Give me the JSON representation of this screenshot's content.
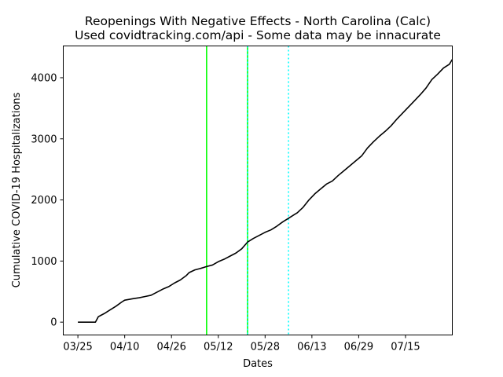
{
  "chart_data": {
    "type": "line",
    "title": "Reopenings With Negative Effects - North Carolina (Calc)",
    "subtitle": "Used covidtracking.com/api - Some data may be innacurate",
    "xlabel": "Dates",
    "ylabel": "Cumulative COVID-19 Hospitalizations",
    "xlim": [
      "2020-03-20",
      "2020-07-31"
    ],
    "ylim": [
      -210,
      4520
    ],
    "x_ticks": [
      "2020-03-25",
      "2020-04-10",
      "2020-04-26",
      "2020-05-12",
      "2020-05-28",
      "2020-06-13",
      "2020-06-29",
      "2020-07-15"
    ],
    "x_tick_labels": [
      "03/25",
      "04/10",
      "04/26",
      "05/12",
      "05/28",
      "06/13",
      "06/29",
      "07/15"
    ],
    "y_ticks": [
      0,
      1000,
      2000,
      3000,
      4000
    ],
    "y_tick_labels": [
      "0",
      "1000",
      "2000",
      "3000",
      "4000"
    ],
    "grid": false,
    "series": [
      {
        "color": "#000000",
        "points": [
          [
            "2020-03-25",
            0
          ],
          [
            "2020-03-31",
            0
          ],
          [
            "2020-04-01",
            90
          ],
          [
            "2020-04-03",
            140
          ],
          [
            "2020-04-05",
            200
          ],
          [
            "2020-04-07",
            260
          ],
          [
            "2020-04-09",
            330
          ],
          [
            "2020-04-10",
            360
          ],
          [
            "2020-04-13",
            385
          ],
          [
            "2020-04-15",
            400
          ],
          [
            "2020-04-17",
            420
          ],
          [
            "2020-04-19",
            440
          ],
          [
            "2020-04-21",
            490
          ],
          [
            "2020-04-23",
            540
          ],
          [
            "2020-04-25",
            580
          ],
          [
            "2020-04-27",
            640
          ],
          [
            "2020-04-29",
            690
          ],
          [
            "2020-05-01",
            760
          ],
          [
            "2020-05-02",
            810
          ],
          [
            "2020-05-04",
            855
          ],
          [
            "2020-05-06",
            880
          ],
          [
            "2020-05-08",
            910
          ],
          [
            "2020-05-10",
            935
          ],
          [
            "2020-05-12",
            990
          ],
          [
            "2020-05-14",
            1030
          ],
          [
            "2020-05-16",
            1080
          ],
          [
            "2020-05-18",
            1130
          ],
          [
            "2020-05-20",
            1200
          ],
          [
            "2020-05-22",
            1310
          ],
          [
            "2020-05-24",
            1370
          ],
          [
            "2020-05-26",
            1420
          ],
          [
            "2020-05-28",
            1470
          ],
          [
            "2020-05-30",
            1510
          ],
          [
            "2020-06-01",
            1570
          ],
          [
            "2020-06-03",
            1640
          ],
          [
            "2020-06-05",
            1700
          ],
          [
            "2020-06-07",
            1760
          ],
          [
            "2020-06-08",
            1790
          ],
          [
            "2020-06-10",
            1880
          ],
          [
            "2020-06-12",
            2000
          ],
          [
            "2020-06-14",
            2100
          ],
          [
            "2020-06-16",
            2180
          ],
          [
            "2020-06-18",
            2260
          ],
          [
            "2020-06-20",
            2310
          ],
          [
            "2020-06-22",
            2400
          ],
          [
            "2020-06-24",
            2480
          ],
          [
            "2020-06-26",
            2560
          ],
          [
            "2020-06-28",
            2640
          ],
          [
            "2020-06-30",
            2720
          ],
          [
            "2020-07-02",
            2850
          ],
          [
            "2020-07-04",
            2950
          ],
          [
            "2020-07-06",
            3040
          ],
          [
            "2020-07-08",
            3120
          ],
          [
            "2020-07-10",
            3210
          ],
          [
            "2020-07-12",
            3320
          ],
          [
            "2020-07-14",
            3420
          ],
          [
            "2020-07-16",
            3520
          ],
          [
            "2020-07-18",
            3620
          ],
          [
            "2020-07-20",
            3720
          ],
          [
            "2020-07-22",
            3830
          ],
          [
            "2020-07-24",
            3970
          ],
          [
            "2020-07-26",
            4060
          ],
          [
            "2020-07-28",
            4160
          ],
          [
            "2020-07-30",
            4220
          ],
          [
            "2020-07-31",
            4300
          ]
        ]
      }
    ],
    "vertical_lines": [
      {
        "x": "2020-05-08",
        "color": "#00ff00",
        "style": "solid"
      },
      {
        "x": "2020-05-22",
        "color": "#00ff00",
        "style": "solid"
      },
      {
        "x": "2020-05-22",
        "color": "#00ffff",
        "style": "dotted"
      },
      {
        "x": "2020-06-05",
        "color": "#00ffff",
        "style": "dotted"
      }
    ]
  }
}
